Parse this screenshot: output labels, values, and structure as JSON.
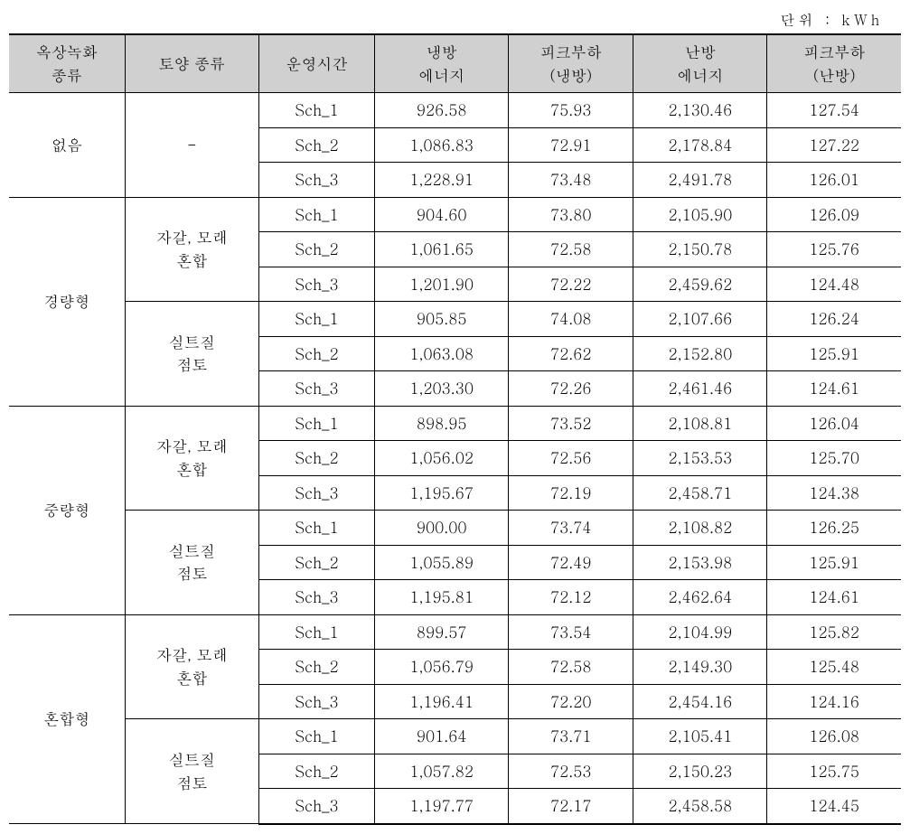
{
  "unit_label": "단위 : kWh",
  "headers": {
    "col1": "옥상녹화\n종류",
    "col2": "토양 종류",
    "col3": "운영시간",
    "col4": "냉방\n에너지",
    "col5": "피크부하\n(냉방)",
    "col6": "난방\n에너지",
    "col7": "피크부하\n(난방)"
  },
  "groups": [
    {
      "roof_type": "없음",
      "soils": [
        {
          "soil": "-",
          "rows": [
            {
              "sch": "Sch_1",
              "cool_e": "926.58",
              "cool_p": "75.93",
              "heat_e": "2,130.46",
              "heat_p": "127.54"
            },
            {
              "sch": "Sch_2",
              "cool_e": "1,086.83",
              "cool_p": "72.91",
              "heat_e": "2,178.84",
              "heat_p": "127.22"
            },
            {
              "sch": "Sch_3",
              "cool_e": "1,228.91",
              "cool_p": "73.48",
              "heat_e": "2,491.78",
              "heat_p": "126.01"
            }
          ]
        }
      ]
    },
    {
      "roof_type": "경량형",
      "soils": [
        {
          "soil": "자갈, 모래\n혼합",
          "rows": [
            {
              "sch": "Sch_1",
              "cool_e": "904.60",
              "cool_p": "73.80",
              "heat_e": "2,105.90",
              "heat_p": "126.09"
            },
            {
              "sch": "Sch_2",
              "cool_e": "1,061.65",
              "cool_p": "72.58",
              "heat_e": "2,150.78",
              "heat_p": "125.76"
            },
            {
              "sch": "Sch_3",
              "cool_e": "1,201.90",
              "cool_p": "72.22",
              "heat_e": "2,459.62",
              "heat_p": "124.48"
            }
          ]
        },
        {
          "soil": "실트질\n점토",
          "rows": [
            {
              "sch": "Sch_1",
              "cool_e": "905.85",
              "cool_p": "74.08",
              "heat_e": "2,107.66",
              "heat_p": "126.24"
            },
            {
              "sch": "Sch_2",
              "cool_e": "1,063.08",
              "cool_p": "72.62",
              "heat_e": "2,152.80",
              "heat_p": "125.91"
            },
            {
              "sch": "Sch_3",
              "cool_e": "1,203.30",
              "cool_p": "72.26",
              "heat_e": "2,461.46",
              "heat_p": "124.61"
            }
          ]
        }
      ]
    },
    {
      "roof_type": "중량형",
      "soils": [
        {
          "soil": "자갈, 모래\n혼합",
          "rows": [
            {
              "sch": "Sch_1",
              "cool_e": "898.95",
              "cool_p": "73.52",
              "heat_e": "2,108.81",
              "heat_p": "126.04"
            },
            {
              "sch": "Sch_2",
              "cool_e": "1,056.02",
              "cool_p": "72.56",
              "heat_e": "2,153.53",
              "heat_p": "125.70"
            },
            {
              "sch": "Sch_3",
              "cool_e": "1,195.67",
              "cool_p": "72.19",
              "heat_e": "2,458.71",
              "heat_p": "124.38"
            }
          ]
        },
        {
          "soil": "실트질\n점토",
          "rows": [
            {
              "sch": "Sch_1",
              "cool_e": "900.00",
              "cool_p": "73.74",
              "heat_e": "2,108.82",
              "heat_p": "126.25"
            },
            {
              "sch": "Sch_2",
              "cool_e": "1,055.89",
              "cool_p": "72.49",
              "heat_e": "2,153.98",
              "heat_p": "125.91"
            },
            {
              "sch": "Sch_3",
              "cool_e": "1,195.81",
              "cool_p": "72.12",
              "heat_e": "2,462.64",
              "heat_p": "124.61"
            }
          ]
        }
      ]
    },
    {
      "roof_type": "혼합형",
      "soils": [
        {
          "soil": "자갈, 모래\n혼합",
          "rows": [
            {
              "sch": "Sch_1",
              "cool_e": "899.57",
              "cool_p": "73.54",
              "heat_e": "2,104.99",
              "heat_p": "125.82"
            },
            {
              "sch": "Sch_2",
              "cool_e": "1,056.79",
              "cool_p": "72.58",
              "heat_e": "2,149.30",
              "heat_p": "125.48"
            },
            {
              "sch": "Sch_3",
              "cool_e": "1,196.41",
              "cool_p": "72.20",
              "heat_e": "2,454.16",
              "heat_p": "124.16"
            }
          ]
        },
        {
          "soil": "실트질\n점토",
          "rows": [
            {
              "sch": "Sch_1",
              "cool_e": "901.64",
              "cool_p": "73.71",
              "heat_e": "2,105.41",
              "heat_p": "126.08"
            },
            {
              "sch": "Sch_2",
              "cool_e": "1,057.82",
              "cool_p": "72.53",
              "heat_e": "2,150.23",
              "heat_p": "125.75"
            },
            {
              "sch": "Sch_3",
              "cool_e": "1,197.77",
              "cool_p": "72.17",
              "heat_e": "2,458.58",
              "heat_p": "124.45"
            }
          ]
        }
      ]
    }
  ]
}
